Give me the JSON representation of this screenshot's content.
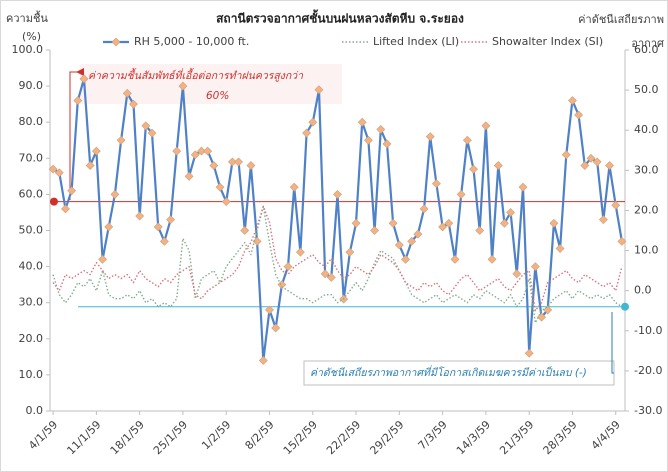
{
  "chart_data": {
    "type": "line",
    "title": "สถานีตรวจอากาศชั้นบนฝนหลวงสัตหีบ  จ.ระยอง",
    "ylabel": [
      "ความชื้น",
      "(%)"
    ],
    "y2label": [
      "ค่าดัชนีเสถียรภาพ",
      "อากาศ"
    ],
    "legend": "top",
    "grid": false,
    "categories": [
      "4/1/59",
      null,
      null,
      null,
      null,
      null,
      null,
      "11/1/59",
      null,
      null,
      null,
      null,
      null,
      null,
      "18/1/59",
      null,
      null,
      null,
      null,
      null,
      null,
      "25/1/59",
      null,
      null,
      null,
      null,
      null,
      null,
      "1/2/59",
      null,
      null,
      null,
      null,
      null,
      null,
      "8/2/59",
      null,
      null,
      null,
      null,
      null,
      null,
      "15/2/59",
      null,
      null,
      null,
      null,
      null,
      null,
      "22/2/59",
      null,
      null,
      null,
      null,
      null,
      null,
      "29/2/59",
      null,
      null,
      null,
      null,
      null,
      null,
      "7/3/59",
      null,
      null,
      null,
      null,
      null,
      null,
      "14/3/59",
      null,
      null,
      null,
      null,
      null,
      null,
      "21/3/59",
      null,
      null,
      null,
      null,
      null,
      null,
      "28/3/59",
      null,
      null,
      null,
      null,
      null,
      null,
      "4/4/59",
      null
    ],
    "ylim": [
      0,
      100
    ],
    "yticks": [
      {
        "value": 0,
        "label": "0.0"
      },
      {
        "value": 10,
        "label": "10.0"
      },
      {
        "value": 20,
        "label": "20.0"
      },
      {
        "value": 30,
        "label": "30.0"
      },
      {
        "value": 40,
        "label": "40.0"
      },
      {
        "value": 50,
        "label": "50.0"
      },
      {
        "value": 60,
        "label": "60.0"
      },
      {
        "value": 70,
        "label": "70.0"
      },
      {
        "value": 80,
        "label": "80.0"
      },
      {
        "value": 90,
        "label": "90.0"
      },
      {
        "value": 100,
        "label": "100.0"
      }
    ],
    "y2lim": [
      -30,
      60
    ],
    "y2ticks": [
      {
        "value": -30,
        "label": "-30.0"
      },
      {
        "value": -20,
        "label": "-20.0"
      },
      {
        "value": -10,
        "label": "-10.0"
      },
      {
        "value": 0,
        "label": "0.0"
      },
      {
        "value": 10,
        "label": "10.0"
      },
      {
        "value": 20,
        "label": "20.0"
      },
      {
        "value": 30,
        "label": "30.0"
      },
      {
        "value": 40,
        "label": "40.0"
      },
      {
        "value": 50,
        "label": "50.0"
      },
      {
        "value": 60,
        "label": "60.0"
      }
    ],
    "series": [
      {
        "name": "RH 5,000 - 10,000 ft.",
        "color": "#4f81c8",
        "marker_color": "#f4b183",
        "axis": "y",
        "values": [
          67,
          66,
          56,
          61,
          86,
          92,
          68,
          72,
          42,
          51,
          60,
          75,
          88,
          85,
          54,
          79,
          77,
          51,
          47,
          53,
          72,
          90,
          65,
          71,
          72,
          72,
          68,
          62,
          58,
          69,
          69,
          50,
          68,
          47,
          14,
          28,
          23,
          35,
          40,
          62,
          44,
          77,
          80,
          89,
          38,
          37,
          60,
          31,
          44,
          52,
          80,
          75,
          50,
          78,
          74,
          52,
          46,
          42,
          47,
          49,
          56,
          76,
          63,
          51,
          52,
          42,
          60,
          75,
          67,
          50,
          79,
          42,
          68,
          52,
          55,
          38,
          62,
          16,
          40,
          26,
          28,
          52,
          45,
          71,
          86,
          82,
          68,
          70,
          69,
          53,
          68,
          57,
          47
        ]
      },
      {
        "name": "Lifted Index (LI)",
        "color": "#7fae8c",
        "axis": "y2",
        "values": [
          4,
          -1,
          -3,
          -1,
          2,
          1,
          3,
          0,
          5,
          -1,
          -2,
          -2,
          -1,
          -2,
          0,
          -3,
          -2,
          -4,
          -3,
          -4,
          -2,
          13,
          10,
          -2,
          3,
          4,
          5,
          2,
          6,
          8,
          10,
          12,
          9,
          15,
          21,
          12,
          4,
          1,
          0,
          -1,
          -2,
          -2,
          -3,
          -2,
          -1,
          -1,
          -3,
          -2,
          0,
          2,
          0,
          3,
          7,
          10,
          9,
          8,
          5,
          2,
          -1,
          -2,
          -3,
          -2,
          -1,
          -3,
          -2,
          -1,
          -2,
          -3,
          -1,
          -2,
          0,
          -1,
          -2,
          -3,
          -1,
          -4,
          -2,
          3,
          -8,
          -5,
          -4,
          -2,
          -1,
          0,
          -2,
          0,
          -1,
          -2,
          -1,
          -2,
          -1,
          -3,
          -4
        ]
      },
      {
        "name": "Showalter Index (SI)",
        "color": "#d8737a",
        "axis": "y2",
        "values": [
          2,
          0,
          4,
          3,
          4,
          5,
          4,
          7,
          5,
          3,
          4,
          3,
          4,
          2,
          5,
          3,
          2,
          1,
          3,
          2,
          4,
          5,
          6,
          -1,
          -2,
          0,
          1,
          2,
          3,
          4,
          6,
          10,
          12,
          16,
          21,
          17,
          8,
          5,
          4,
          6,
          7,
          8,
          9,
          7,
          6,
          8,
          5,
          3,
          4,
          6,
          5,
          4,
          6,
          9,
          8,
          7,
          5,
          2,
          1,
          0,
          2,
          1,
          2,
          0,
          -1,
          1,
          3,
          4,
          2,
          0,
          1,
          2,
          3,
          1,
          0,
          2,
          4,
          5,
          -5,
          -3,
          2,
          3,
          4,
          5,
          3,
          2,
          4,
          3,
          2,
          1,
          2,
          0,
          6
        ]
      }
    ],
    "reference_lines": [
      {
        "axis": "y",
        "value": 58,
        "color": "#d0302a"
      },
      {
        "axis": "y2",
        "value": -4,
        "color": "#3fb8d0"
      }
    ],
    "annotations": [
      {
        "lines": [
          "ค่าความชื้นสัมพัทธ์ที่เอื้อต่อการทำฝนควรสูงกว่า",
          "60%"
        ]
      },
      {
        "lines": [
          "ค่าดัชนีเสถียรภาพอากาศที่มีโอกาสเกิดเมฆควรมีค่าเป็นลบ (-)"
        ]
      }
    ]
  }
}
